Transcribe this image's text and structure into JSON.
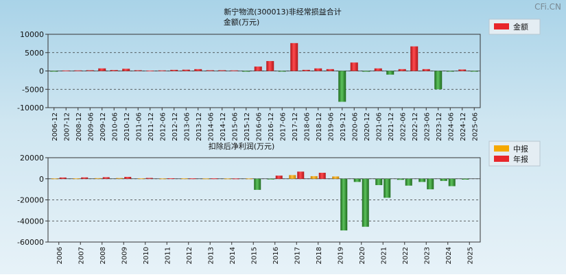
{
  "watermark": "CFi.CN",
  "chart_data": [
    {
      "type": "bar",
      "title": "新宁物流(300013)非经常损益合计",
      "subtitle": "金额(万元)",
      "legend": [
        "金额"
      ],
      "legend_position": "top-right",
      "ylim": [
        -10000,
        10000
      ],
      "yticks": [
        "10000",
        "5000",
        "0",
        "-5000",
        "-10000"
      ],
      "ytick_values": [
        10000,
        5000,
        0,
        -5000,
        -10000
      ],
      "categories": [
        "2006-12",
        "2007-12",
        "2008-12",
        "2009-06",
        "2009-12",
        "2010-06",
        "2010-12",
        "2011-06",
        "2011-12",
        "2012-06",
        "2012-12",
        "2013-06",
        "2013-12",
        "2014-06",
        "2014-12",
        "2015-06",
        "2015-12",
        "2016-06",
        "2016-12",
        "2017-06",
        "2017-12",
        "2018-06",
        "2018-12",
        "2019-06",
        "2019-12",
        "2020-06",
        "2020-12",
        "2021-06",
        "2021-12",
        "2022-06",
        "2022-12",
        "2023-06",
        "2023-12",
        "2024-06",
        "2024-12",
        "2025-06"
      ],
      "values": [
        -150,
        120,
        150,
        200,
        700,
        250,
        600,
        200,
        100,
        150,
        300,
        350,
        500,
        200,
        200,
        150,
        -200,
        1200,
        2700,
        -100,
        7600,
        300,
        700,
        500,
        -8400,
        2300,
        -200,
        700,
        -1000,
        500,
        6700,
        500,
        -5000,
        -100,
        400,
        -100
      ],
      "colors": {
        "positive": "#e8262b",
        "negative": "#2d8a2d"
      },
      "grid": true
    },
    {
      "type": "bar",
      "title": "扣除后净利润(万元)",
      "legend": [
        "中报",
        "年报"
      ],
      "legend_position": "top-right",
      "ylim": [
        -60000,
        20000
      ],
      "yticks": [
        "20000",
        "0",
        "-20000",
        "-40000",
        "-60000"
      ],
      "ytick_values": [
        20000,
        0,
        -20000,
        -40000,
        -60000
      ],
      "categories": [
        "2006",
        "2007",
        "2008",
        "2009",
        "2010",
        "2011",
        "2012",
        "2013",
        "2014",
        "2015",
        "2016",
        "2017",
        "2018",
        "2019",
        "2020",
        "2021",
        "2022",
        "2023",
        "2024",
        "2025"
      ],
      "series": [
        {
          "name": "中报",
          "values": [
            300,
            400,
            600,
            700,
            400,
            300,
            400,
            300,
            300,
            300,
            -200,
            3500,
            2500,
            2200,
            -3000,
            -6000,
            -1000,
            -3000,
            -2000,
            -800
          ]
        },
        {
          "name": "年报",
          "values": [
            1200,
            1300,
            1500,
            1800,
            800,
            500,
            400,
            400,
            300,
            -10500,
            3000,
            6800,
            5700,
            -49000,
            -45500,
            -18000,
            -6500,
            -10000,
            -7000,
            null
          ]
        }
      ],
      "colors": {
        "中报": "#f5a800",
        "年报": "#e8262b",
        "negative": "#2d8a2d"
      },
      "grid": true
    }
  ]
}
